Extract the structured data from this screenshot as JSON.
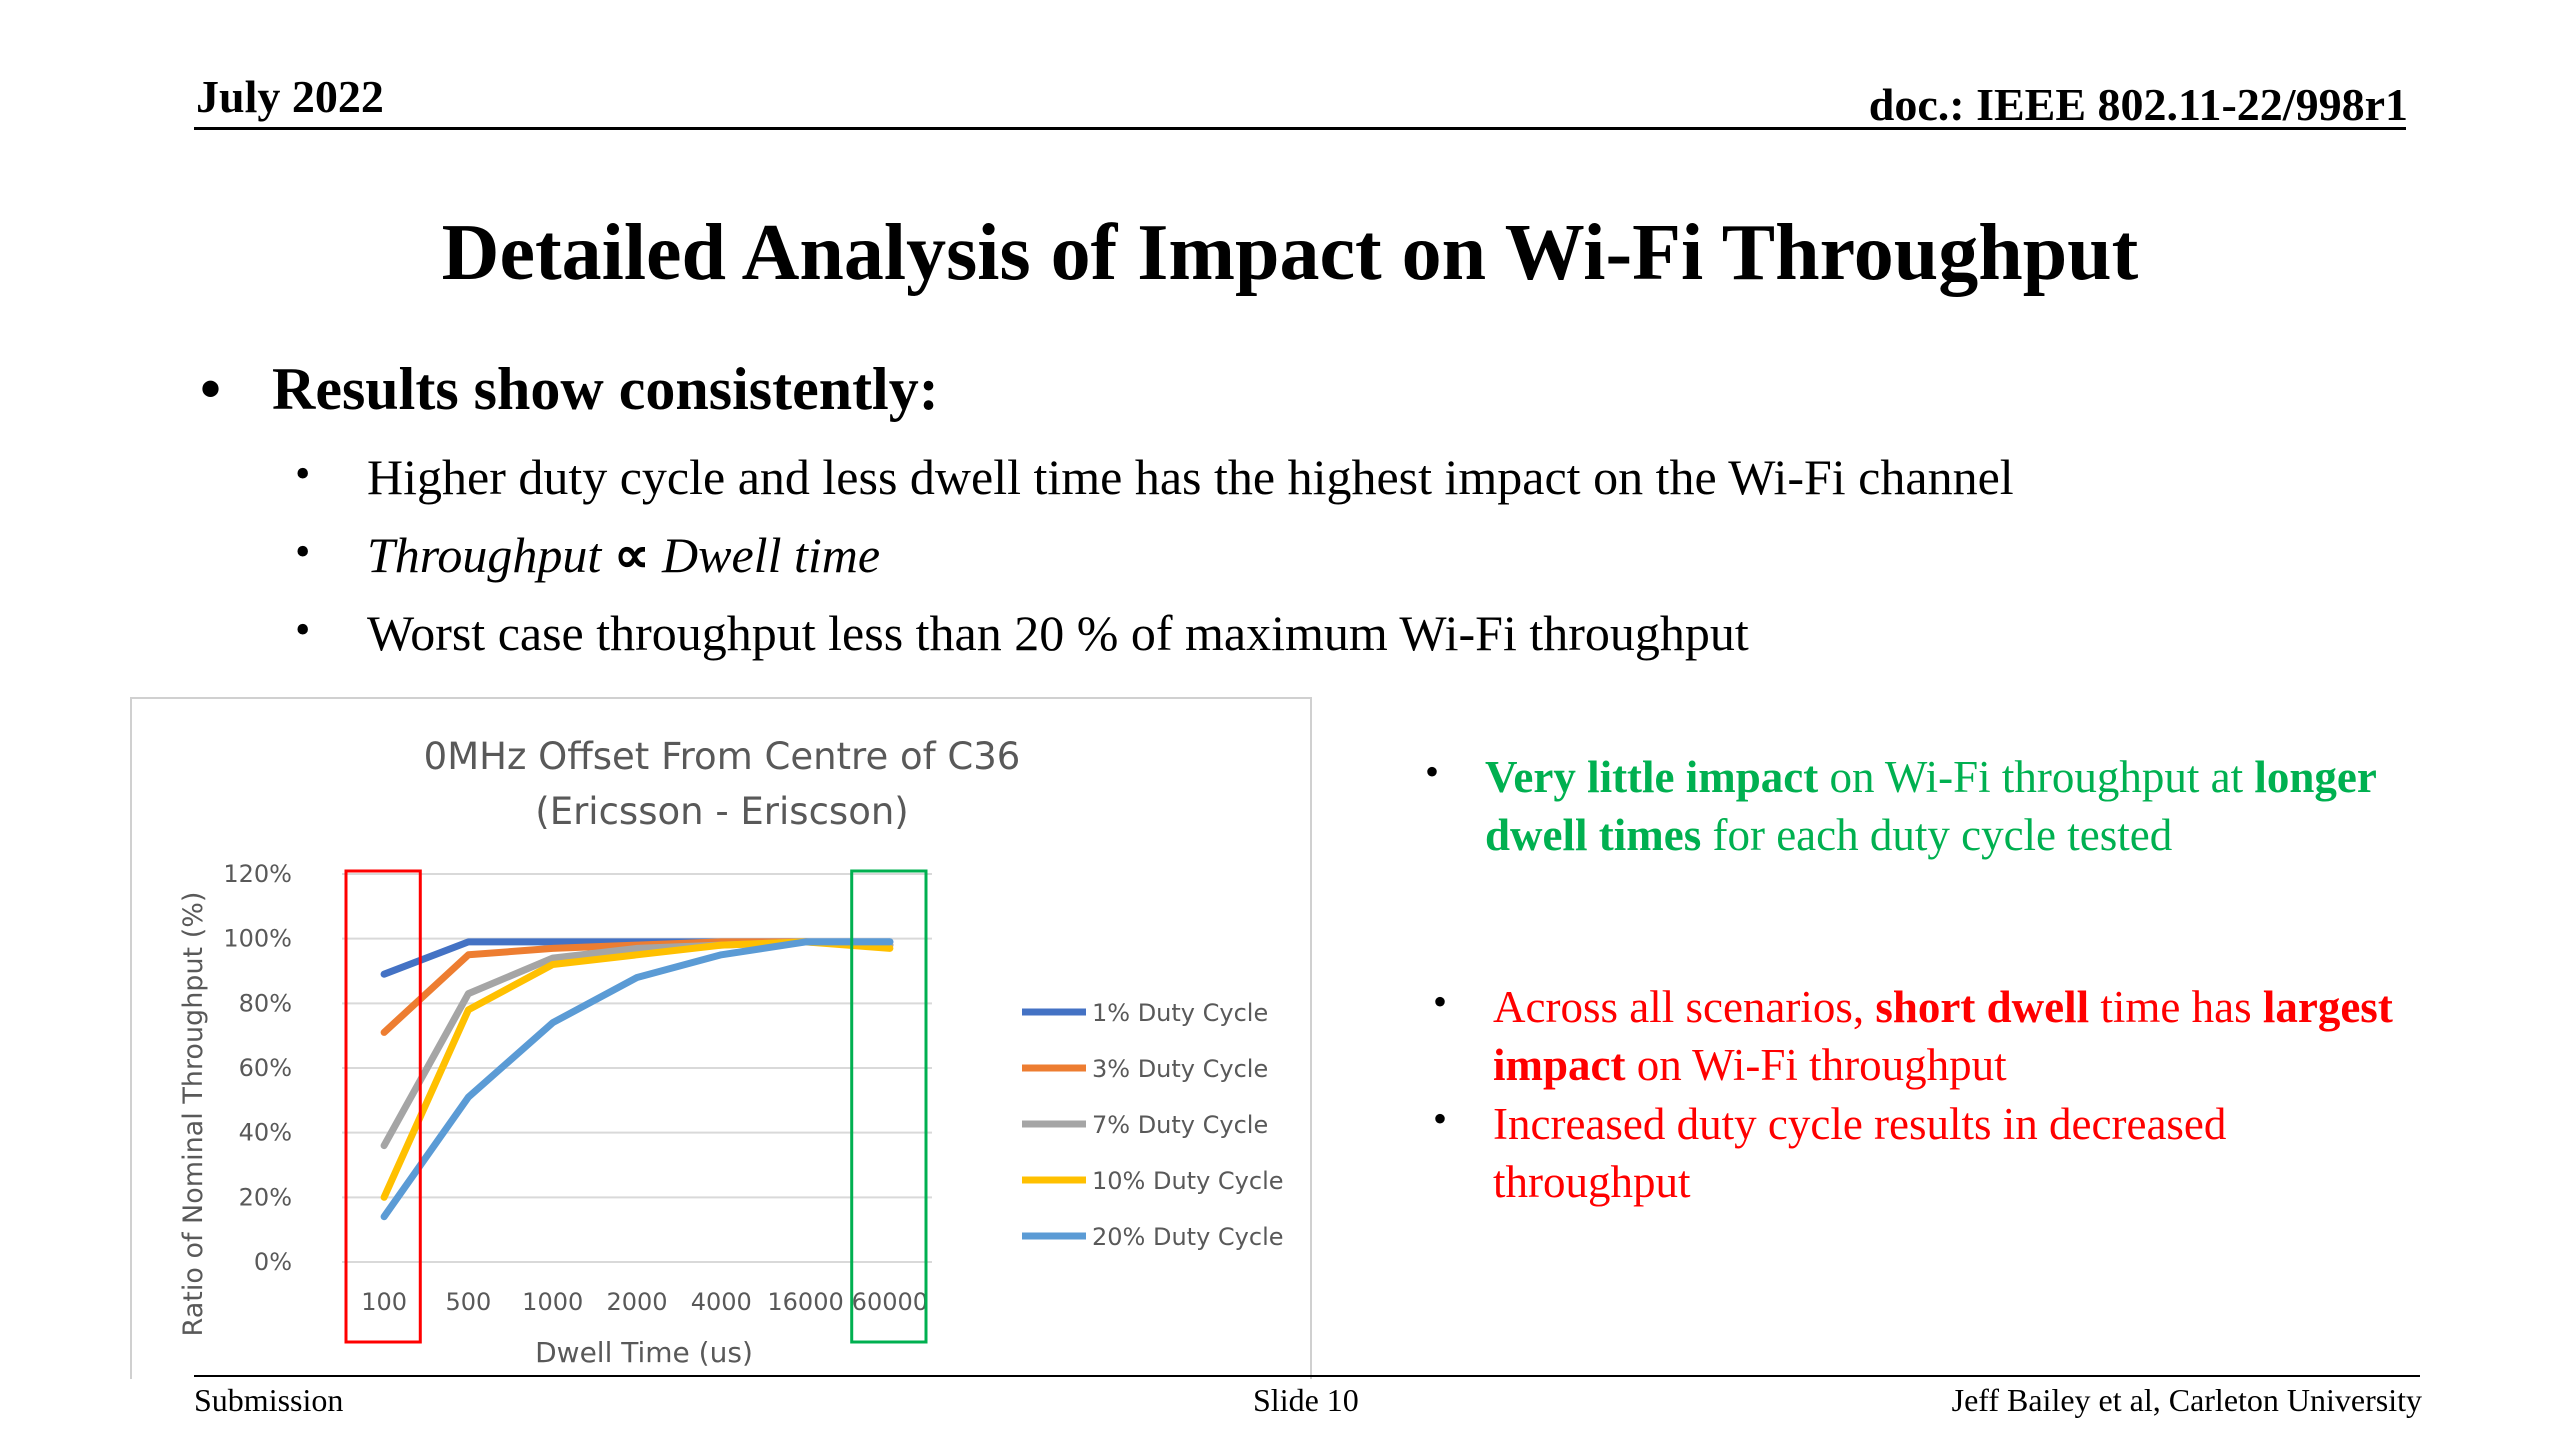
{
  "header": {
    "date": "July 2022",
    "doc": "doc.: IEEE 802.11-22/998r1"
  },
  "title": "Detailed Analysis of Impact on Wi-Fi Throughput",
  "bullets": {
    "main": "Results show consistently:",
    "sub1": "Higher duty cycle and less dwell time has the highest impact on the Wi-Fi channel",
    "sub2_a": "Throughput",
    "sub2_sym": "∝",
    "sub2_b": "Dwell time",
    "sub3": "Worst case throughput less than 20 % of maximum Wi-Fi throughput"
  },
  "right_bullets": {
    "g_bold1": "Very little impact",
    "g_text1": " on Wi-Fi throughput at ",
    "g_bold2": "longer dwell times",
    "g_text2": " for each duty cycle tested",
    "r1_text1": "Across all scenarios, ",
    "r1_bold1": "short dwell",
    "r1_text2": " time has ",
    "r1_bold2": "largest impact",
    "r1_text3": " on Wi-Fi throughput",
    "r2_text": "Increased duty cycle results in decreased throughput"
  },
  "chart_data": {
    "type": "line",
    "title": "0MHz Offset From Centre of C36",
    "subtitle": "(Ericsson - Eriscson)",
    "xlabel": "Dwell Time (us)",
    "ylabel": "Ratio of Nominal Throughput (%)",
    "categories": [
      "100",
      "500",
      "1000",
      "2000",
      "4000",
      "16000",
      "60000"
    ],
    "ylim": [
      0,
      120
    ],
    "yticks": [
      "0%",
      "20%",
      "40%",
      "60%",
      "80%",
      "100%",
      "120%"
    ],
    "grid": true,
    "legend_position": "right",
    "highlight_boxes": [
      {
        "category": "100",
        "color": "#ff0000"
      },
      {
        "category": "60000",
        "color": "#00b050"
      }
    ],
    "series": [
      {
        "name": "1% Duty Cycle",
        "color": "#4472c4",
        "values": [
          89,
          99,
          99,
          99,
          99,
          99,
          99
        ]
      },
      {
        "name": "3% Duty Cycle",
        "color": "#ed7d31",
        "values": [
          71,
          95,
          97,
          98,
          99,
          99,
          98
        ]
      },
      {
        "name": "7% Duty Cycle",
        "color": "#a5a5a5",
        "values": [
          36,
          83,
          94,
          97,
          98,
          99,
          98
        ]
      },
      {
        "name": "10% Duty Cycle",
        "color": "#ffc000",
        "values": [
          20,
          78,
          92,
          95,
          98,
          99,
          97
        ]
      },
      {
        "name": "20% Duty Cycle",
        "color": "#5b9bd5",
        "values": [
          14,
          51,
          74,
          88,
          95,
          99,
          99
        ]
      }
    ]
  },
  "footer": {
    "left": "Submission",
    "mid": "Slide 10",
    "right": "Jeff Bailey et al, Carleton University"
  }
}
